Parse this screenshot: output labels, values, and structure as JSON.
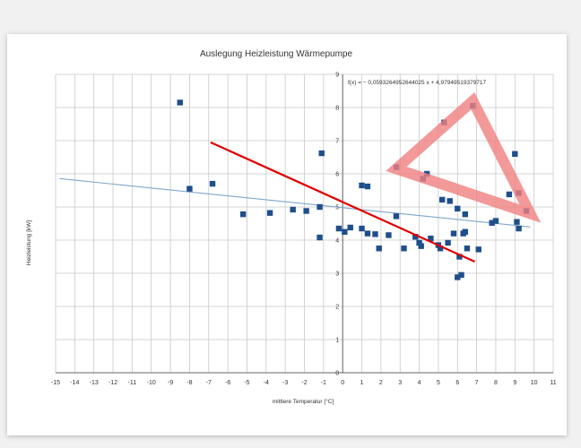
{
  "chart_data": {
    "type": "scatter",
    "title": "Auslegung Heizleistung Wärmepumpe",
    "xlabel": "mittlere Temperatur [°C]",
    "ylabel": "Heizleistung [kW]",
    "xlim": [
      -15,
      11
    ],
    "ylim": [
      0,
      9
    ],
    "xticks": [
      -15,
      -14,
      -13,
      -12,
      -11,
      -10,
      -9,
      -8,
      -7,
      -6,
      -5,
      -4,
      -3,
      -2,
      -1,
      0,
      1,
      2,
      3,
      4,
      5,
      6,
      7,
      8,
      9,
      10,
      11
    ],
    "yticks": [
      0,
      1,
      2,
      3,
      4,
      5,
      6,
      7,
      8,
      9
    ],
    "grid": true,
    "marker_color": "#1f4e8c",
    "trendline": {
      "label": "f(x) = − 0,0593264952644025 x + 4,97949519379717",
      "slope": -0.0593264952644025,
      "intercept": 4.97949519379717,
      "x_range": [
        -14.8,
        9.8
      ],
      "color": "#7fa6cc"
    },
    "points": [
      {
        "x": -8.5,
        "y": 8.15
      },
      {
        "x": -8.0,
        "y": 5.55
      },
      {
        "x": -6.8,
        "y": 5.7
      },
      {
        "x": -5.2,
        "y": 4.78
      },
      {
        "x": -3.8,
        "y": 4.82
      },
      {
        "x": -2.6,
        "y": 4.92
      },
      {
        "x": -1.9,
        "y": 4.88
      },
      {
        "x": -1.2,
        "y": 4.08
      },
      {
        "x": -1.1,
        "y": 6.62
      },
      {
        "x": -1.2,
        "y": 5.0
      },
      {
        "x": -0.2,
        "y": 4.35
      },
      {
        "x": 0.1,
        "y": 4.25
      },
      {
        "x": 0.4,
        "y": 4.38
      },
      {
        "x": 1.0,
        "y": 5.65
      },
      {
        "x": 1.3,
        "y": 5.62
      },
      {
        "x": 1.0,
        "y": 4.35
      },
      {
        "x": 1.3,
        "y": 4.2
      },
      {
        "x": 1.7,
        "y": 4.18
      },
      {
        "x": 1.9,
        "y": 3.75
      },
      {
        "x": 2.4,
        "y": 4.15
      },
      {
        "x": 2.8,
        "y": 6.2
      },
      {
        "x": 2.8,
        "y": 4.72
      },
      {
        "x": 3.2,
        "y": 3.75
      },
      {
        "x": 3.8,
        "y": 4.1
      },
      {
        "x": 4.0,
        "y": 3.92
      },
      {
        "x": 4.1,
        "y": 3.82
      },
      {
        "x": 4.2,
        "y": 5.85
      },
      {
        "x": 4.4,
        "y": 6.0
      },
      {
        "x": 4.6,
        "y": 4.05
      },
      {
        "x": 5.0,
        "y": 3.85
      },
      {
        "x": 5.1,
        "y": 3.75
      },
      {
        "x": 5.3,
        "y": 7.55
      },
      {
        "x": 5.2,
        "y": 5.22
      },
      {
        "x": 5.6,
        "y": 5.18
      },
      {
        "x": 5.5,
        "y": 3.92
      },
      {
        "x": 5.8,
        "y": 4.2
      },
      {
        "x": 6.0,
        "y": 4.95
      },
      {
        "x": 6.0,
        "y": 2.88
      },
      {
        "x": 6.2,
        "y": 2.95
      },
      {
        "x": 6.1,
        "y": 3.5
      },
      {
        "x": 6.3,
        "y": 4.2
      },
      {
        "x": 6.4,
        "y": 4.25
      },
      {
        "x": 6.4,
        "y": 4.78
      },
      {
        "x": 6.5,
        "y": 3.75
      },
      {
        "x": 6.8,
        "y": 8.05
      },
      {
        "x": 7.1,
        "y": 3.72
      },
      {
        "x": 7.8,
        "y": 4.52
      },
      {
        "x": 8.0,
        "y": 4.58
      },
      {
        "x": 8.7,
        "y": 5.38
      },
      {
        "x": 9.0,
        "y": 6.6
      },
      {
        "x": 9.1,
        "y": 4.55
      },
      {
        "x": 9.2,
        "y": 4.35
      },
      {
        "x": 9.2,
        "y": 5.42
      },
      {
        "x": 9.6,
        "y": 4.88
      }
    ],
    "annotations": {
      "red_line": {
        "color": "#e00000",
        "from": {
          "x": -6.9,
          "y": 6.95
        },
        "to": {
          "x": 6.9,
          "y": 3.35
        }
      },
      "triangle": {
        "color": "#f08080",
        "vertices": [
          {
            "x": 2.8,
            "y": 6.15
          },
          {
            "x": 6.8,
            "y": 8.2
          },
          {
            "x": 9.8,
            "y": 4.8
          }
        ]
      }
    }
  }
}
